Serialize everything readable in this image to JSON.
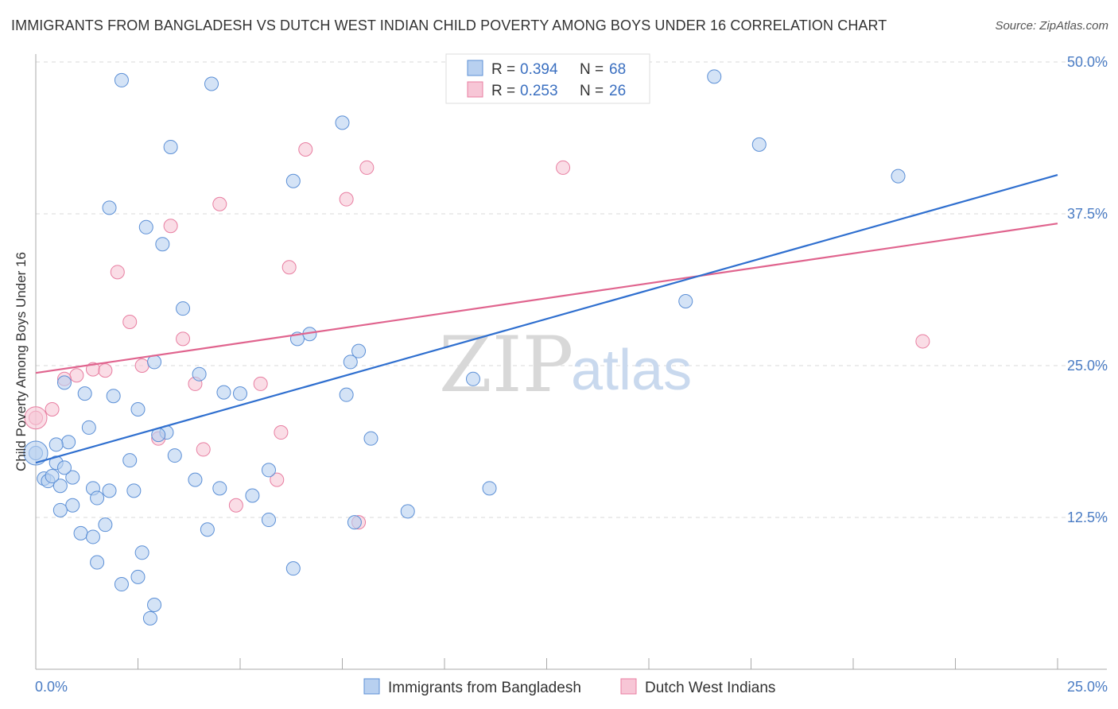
{
  "title": "IMMIGRANTS FROM BANGLADESH VS DUTCH WEST INDIAN CHILD POVERTY AMONG BOYS UNDER 16 CORRELATION CHART",
  "source": "Source: ZipAtlas.com",
  "watermark": {
    "zip": "ZIP",
    "atlas": "atlas"
  },
  "colors": {
    "blue": "#5b8fd6",
    "blue_fill": "#b8d0f0",
    "blue_line": "#2f6fcf",
    "pink": "#e87ea1",
    "pink_fill": "#f7c6d6",
    "pink_line": "#e0648e",
    "grid": "#d9d9d9",
    "axis": "#aaaaaa",
    "tick_text": "#4a7cc4"
  },
  "legend": {
    "rows": [
      {
        "r_label": "R =",
        "r_value": "0.394",
        "n_label": "N =",
        "n_value": "68"
      },
      {
        "r_label": "R =",
        "r_value": "0.253",
        "n_label": "N =",
        "n_value": "26"
      }
    ]
  },
  "chart_data": {
    "type": "scatter",
    "title": "IMMIGRANTS FROM BANGLADESH VS DUTCH WEST INDIAN CHILD POVERTY AMONG BOYS UNDER 16 CORRELATION CHART",
    "xlabel": "",
    "ylabel": "Child Poverty Among Boys Under 16",
    "xlim": [
      0,
      25
    ],
    "ylim": [
      0,
      50
    ],
    "x_tick_labels": [
      "0.0%",
      "25.0%"
    ],
    "y_ticks": [
      12.5,
      25.0,
      37.5,
      50.0
    ],
    "y_tick_labels": [
      "12.5%",
      "25.0%",
      "37.5%",
      "50.0%"
    ],
    "grid": true,
    "legend_position": "top-center",
    "series": [
      {
        "name": "Immigrants from Bangladesh",
        "color": "blue",
        "trend": {
          "x": [
            0,
            25
          ],
          "y": [
            17.0,
            40.7
          ]
        },
        "points": [
          {
            "x": 2.1,
            "y": 48.5
          },
          {
            "x": 4.3,
            "y": 48.2
          },
          {
            "x": 16.6,
            "y": 48.8
          },
          {
            "x": 7.5,
            "y": 45.0
          },
          {
            "x": 3.3,
            "y": 43.0
          },
          {
            "x": 17.7,
            "y": 43.2
          },
          {
            "x": 6.3,
            "y": 40.2
          },
          {
            "x": 21.1,
            "y": 40.6
          },
          {
            "x": 1.8,
            "y": 38.0
          },
          {
            "x": 2.7,
            "y": 36.4
          },
          {
            "x": 3.1,
            "y": 35.0
          },
          {
            "x": 3.6,
            "y": 29.7
          },
          {
            "x": 15.9,
            "y": 30.3
          },
          {
            "x": 6.7,
            "y": 27.6
          },
          {
            "x": 6.4,
            "y": 27.2
          },
          {
            "x": 7.9,
            "y": 26.2
          },
          {
            "x": 2.9,
            "y": 25.3
          },
          {
            "x": 7.7,
            "y": 25.3
          },
          {
            "x": 0.7,
            "y": 23.6
          },
          {
            "x": 4.0,
            "y": 24.3
          },
          {
            "x": 10.7,
            "y": 23.9
          },
          {
            "x": 1.2,
            "y": 22.7
          },
          {
            "x": 1.9,
            "y": 22.5
          },
          {
            "x": 4.6,
            "y": 22.8
          },
          {
            "x": 5.0,
            "y": 22.7
          },
          {
            "x": 7.6,
            "y": 22.6
          },
          {
            "x": 2.5,
            "y": 21.4
          },
          {
            "x": 1.3,
            "y": 19.9
          },
          {
            "x": 3.2,
            "y": 19.5
          },
          {
            "x": 3.0,
            "y": 19.3
          },
          {
            "x": 0.8,
            "y": 18.7
          },
          {
            "x": 0.5,
            "y": 18.5
          },
          {
            "x": 8.2,
            "y": 19.0
          },
          {
            "x": 0.0,
            "y": 17.8
          },
          {
            "x": 2.3,
            "y": 17.2
          },
          {
            "x": 3.4,
            "y": 17.6
          },
          {
            "x": 0.5,
            "y": 17.0
          },
          {
            "x": 5.7,
            "y": 16.4
          },
          {
            "x": 0.2,
            "y": 15.7
          },
          {
            "x": 0.3,
            "y": 15.5
          },
          {
            "x": 0.9,
            "y": 15.8
          },
          {
            "x": 3.9,
            "y": 15.6
          },
          {
            "x": 0.6,
            "y": 15.1
          },
          {
            "x": 1.4,
            "y": 14.9
          },
          {
            "x": 1.8,
            "y": 14.7
          },
          {
            "x": 2.4,
            "y": 14.7
          },
          {
            "x": 4.5,
            "y": 14.9
          },
          {
            "x": 11.1,
            "y": 14.9
          },
          {
            "x": 5.3,
            "y": 14.3
          },
          {
            "x": 1.5,
            "y": 14.1
          },
          {
            "x": 0.9,
            "y": 13.5
          },
          {
            "x": 0.6,
            "y": 13.1
          },
          {
            "x": 9.1,
            "y": 13.0
          },
          {
            "x": 5.7,
            "y": 12.3
          },
          {
            "x": 7.8,
            "y": 12.1
          },
          {
            "x": 1.7,
            "y": 11.9
          },
          {
            "x": 1.1,
            "y": 11.2
          },
          {
            "x": 1.4,
            "y": 10.9
          },
          {
            "x": 4.2,
            "y": 11.5
          },
          {
            "x": 2.6,
            "y": 9.6
          },
          {
            "x": 1.5,
            "y": 8.8
          },
          {
            "x": 6.3,
            "y": 8.3
          },
          {
            "x": 2.5,
            "y": 7.6
          },
          {
            "x": 2.1,
            "y": 7.0
          },
          {
            "x": 2.9,
            "y": 5.3
          },
          {
            "x": 2.8,
            "y": 4.2
          },
          {
            "x": 0.4,
            "y": 15.9
          },
          {
            "x": 0.7,
            "y": 16.6
          }
        ]
      },
      {
        "name": "Dutch West Indians",
        "color": "pink",
        "trend": {
          "x": [
            0,
            25
          ],
          "y": [
            24.4,
            36.7
          ]
        },
        "points": [
          {
            "x": 6.6,
            "y": 42.8
          },
          {
            "x": 8.1,
            "y": 41.3
          },
          {
            "x": 12.9,
            "y": 41.3
          },
          {
            "x": 7.6,
            "y": 38.7
          },
          {
            "x": 4.5,
            "y": 38.3
          },
          {
            "x": 3.3,
            "y": 36.5
          },
          {
            "x": 2.0,
            "y": 32.7
          },
          {
            "x": 6.2,
            "y": 33.1
          },
          {
            "x": 2.3,
            "y": 28.6
          },
          {
            "x": 3.6,
            "y": 27.2
          },
          {
            "x": 21.7,
            "y": 27.0
          },
          {
            "x": 2.6,
            "y": 25.0
          },
          {
            "x": 1.4,
            "y": 24.7
          },
          {
            "x": 1.7,
            "y": 24.6
          },
          {
            "x": 1.0,
            "y": 24.2
          },
          {
            "x": 0.7,
            "y": 23.9
          },
          {
            "x": 3.9,
            "y": 23.5
          },
          {
            "x": 5.5,
            "y": 23.5
          },
          {
            "x": 0.4,
            "y": 21.4
          },
          {
            "x": 0.0,
            "y": 20.7
          },
          {
            "x": 6.0,
            "y": 19.5
          },
          {
            "x": 3.0,
            "y": 19.0
          },
          {
            "x": 4.1,
            "y": 18.1
          },
          {
            "x": 5.9,
            "y": 15.6
          },
          {
            "x": 4.9,
            "y": 13.5
          },
          {
            "x": 7.9,
            "y": 12.1
          }
        ]
      }
    ]
  }
}
